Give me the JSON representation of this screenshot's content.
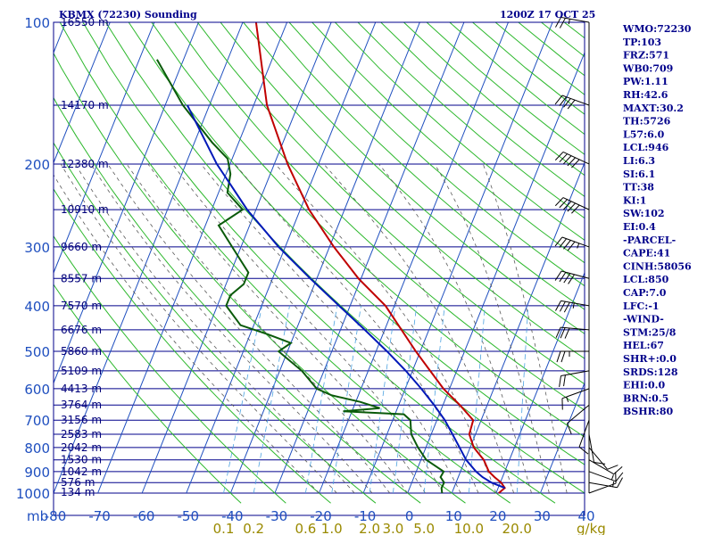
{
  "header": {
    "station": "KBMX (72230) Sounding",
    "time": "1200Z 17 OCT 25"
  },
  "indices": [
    "WMO:72230",
    "TP:103",
    "FRZ:571",
    "WB0:709",
    "PW:1.11",
    "RH:42.6",
    "MAXT:30.2",
    "TH:5726",
    "L57:6.0",
    "LCL:946",
    "LI:6.3",
    "SI:6.1",
    "TT:38",
    "KI:1",
    "SW:102",
    "EI:0.4",
    "-PARCEL-",
    "CAPE:41",
    "CINH:58056",
    "LCL:850",
    "CAP:7.0",
    "LFC:-1",
    "-WIND-",
    "STM:25/8",
    "HEL:67",
    "SHR+:0.0",
    "SRDS:128",
    "EHI:0.0",
    "BRN:0.5",
    "BSHR:80"
  ],
  "colors": {
    "isobar": "#00008b",
    "isotherm": "#1f4fbf",
    "dry_adiabat": "#2db82d",
    "moist_adiabat": "#5a5a5a",
    "mixing_ratio": "#4da3e0",
    "temperature": "#c00000",
    "dewpoint": "#0a5a0a",
    "parcel": "#0018b8",
    "wind": "#000000"
  },
  "chart_data": {
    "type": "line",
    "title": "KBMX (72230) Sounding",
    "pressure_axis_label": "mb",
    "mixing_ratio_unit": "g/kg",
    "pressure_ticks": [
      1000,
      900,
      800,
      700,
      600,
      500,
      400,
      300,
      200,
      100
    ],
    "pressure_tick_labels": [
      "1000",
      "900",
      "800",
      "700",
      "600",
      "500",
      "400",
      "300",
      "200",
      "100"
    ],
    "temperature_ticks": [
      -80,
      -70,
      -60,
      -50,
      -40,
      -30,
      -20,
      -10,
      0,
      10,
      20,
      30,
      40
    ],
    "temperature_tick_labels": [
      "-80",
      "-70",
      "-60",
      "-50",
      "-40",
      "-30",
      "-20",
      "-10",
      "0",
      "10",
      "20",
      "30",
      "40"
    ],
    "mixing_ratio_ticks": [
      0.1,
      0.2,
      0.6,
      1.0,
      2.0,
      3.0,
      5.0,
      10.0,
      20.0
    ],
    "mixing_ratio_tick_labels": [
      "0.1",
      "0.2",
      "0.6",
      "1.0",
      "2.0",
      "3.0",
      "5.0",
      "10.0",
      "20.0"
    ],
    "heights": [
      {
        "p": 995,
        "label": "134 m"
      },
      {
        "p": 950,
        "label": "576 m"
      },
      {
        "p": 900,
        "label": "1042 m"
      },
      {
        "p": 850,
        "label": "1530 m"
      },
      {
        "p": 800,
        "label": "2042 m"
      },
      {
        "p": 750,
        "label": "2583 m"
      },
      {
        "p": 700,
        "label": "3156 m"
      },
      {
        "p": 650,
        "label": "3764 m"
      },
      {
        "p": 600,
        "label": "4413 m"
      },
      {
        "p": 550,
        "label": "5109 m"
      },
      {
        "p": 500,
        "label": "5860 m"
      },
      {
        "p": 450,
        "label": "6676 m"
      },
      {
        "p": 400,
        "label": "7570 m"
      },
      {
        "p": 350,
        "label": "8557 m"
      },
      {
        "p": 300,
        "label": "9660 m"
      },
      {
        "p": 250,
        "label": "10910 m"
      },
      {
        "p": 200,
        "label": "12380 m"
      },
      {
        "p": 150,
        "label": "14170 m"
      },
      {
        "p": 100,
        "label": "16550 m"
      }
    ],
    "series": [
      {
        "name": "temperature",
        "points": [
          [
            1000,
            20.6
          ],
          [
            975,
            21.5
          ],
          [
            950,
            20.2
          ],
          [
            925,
            18.2
          ],
          [
            900,
            16.4
          ],
          [
            850,
            14.2
          ],
          [
            800,
            10.8
          ],
          [
            750,
            8.6
          ],
          [
            700,
            8.2
          ],
          [
            650,
            3.8
          ],
          [
            600,
            -1.4
          ],
          [
            550,
            -6.0
          ],
          [
            500,
            -11.0
          ],
          [
            450,
            -16.2
          ],
          [
            400,
            -22.0
          ],
          [
            350,
            -30.6
          ],
          [
            300,
            -39.0
          ],
          [
            250,
            -48.0
          ],
          [
            200,
            -57.0
          ],
          [
            150,
            -67.0
          ],
          [
            100,
            -77.0
          ]
        ]
      },
      {
        "name": "dewpoint",
        "points": [
          [
            1000,
            7.8
          ],
          [
            975,
            7.2
          ],
          [
            950,
            7.3
          ],
          [
            925,
            6.0
          ],
          [
            900,
            6.2
          ],
          [
            850,
            1.2
          ],
          [
            800,
            -1.8
          ],
          [
            750,
            -4.5
          ],
          [
            700,
            -6.0
          ],
          [
            680,
            -8.0
          ],
          [
            670,
            -22.0
          ],
          [
            660,
            -14.0
          ],
          [
            640,
            -19.0
          ],
          [
            620,
            -26.0
          ],
          [
            600,
            -30.0
          ],
          [
            550,
            -35.0
          ],
          [
            500,
            -42.0
          ],
          [
            480,
            -40.0
          ],
          [
            460,
            -46.0
          ],
          [
            440,
            -53.0
          ],
          [
            400,
            -58.0
          ],
          [
            380,
            -58.0
          ],
          [
            360,
            -56.0
          ],
          [
            340,
            -56.0
          ],
          [
            300,
            -62.0
          ],
          [
            270,
            -67.0
          ],
          [
            250,
            -63.0
          ],
          [
            230,
            -68.0
          ],
          [
            210,
            -69.0
          ],
          [
            195,
            -71.0
          ],
          [
            180,
            -76.0
          ],
          [
            150,
            -86.0
          ],
          [
            120,
            -96.0
          ]
        ]
      },
      {
        "name": "parcel",
        "points": [
          [
            975,
            21.5
          ],
          [
            950,
            18.0
          ],
          [
            925,
            15.5
          ],
          [
            900,
            13.5
          ],
          [
            850,
            10.2
          ],
          [
            800,
            7.6
          ],
          [
            750,
            4.8
          ],
          [
            700,
            1.8
          ],
          [
            650,
            -2.0
          ],
          [
            600,
            -6.4
          ],
          [
            550,
            -11.5
          ],
          [
            500,
            -17.5
          ],
          [
            450,
            -24.5
          ],
          [
            400,
            -32.5
          ],
          [
            350,
            -41.5
          ],
          [
            300,
            -51.5
          ],
          [
            250,
            -62.0
          ],
          [
            200,
            -73.0
          ],
          [
            150,
            -85.0
          ]
        ]
      }
    ],
    "wind_barbs": [
      {
        "p": 1000,
        "dir": 70,
        "spd": 10
      },
      {
        "p": 950,
        "dir": 100,
        "spd": 15
      },
      {
        "p": 900,
        "dir": 110,
        "spd": 15
      },
      {
        "p": 850,
        "dir": 120,
        "spd": 10
      },
      {
        "p": 800,
        "dir": 140,
        "spd": 10
      },
      {
        "p": 750,
        "dir": 170,
        "spd": 10
      },
      {
        "p": 700,
        "dir": 200,
        "spd": 10
      },
      {
        "p": 650,
        "dir": 230,
        "spd": 10
      },
      {
        "p": 600,
        "dir": 250,
        "spd": 15
      },
      {
        "p": 550,
        "dir": 260,
        "spd": 20
      },
      {
        "p": 500,
        "dir": 270,
        "spd": 25
      },
      {
        "p": 450,
        "dir": 275,
        "spd": 30
      },
      {
        "p": 400,
        "dir": 280,
        "spd": 35
      },
      {
        "p": 350,
        "dir": 285,
        "spd": 40
      },
      {
        "p": 300,
        "dir": 290,
        "spd": 45
      },
      {
        "p": 250,
        "dir": 295,
        "spd": 50
      },
      {
        "p": 200,
        "dir": 295,
        "spd": 50
      },
      {
        "p": 150,
        "dir": 290,
        "spd": 40
      },
      {
        "p": 100,
        "dir": 280,
        "spd": 25
      }
    ],
    "pressure_range": [
      1000,
      100
    ],
    "temperature_range": [
      -80,
      40
    ],
    "grid": true
  }
}
